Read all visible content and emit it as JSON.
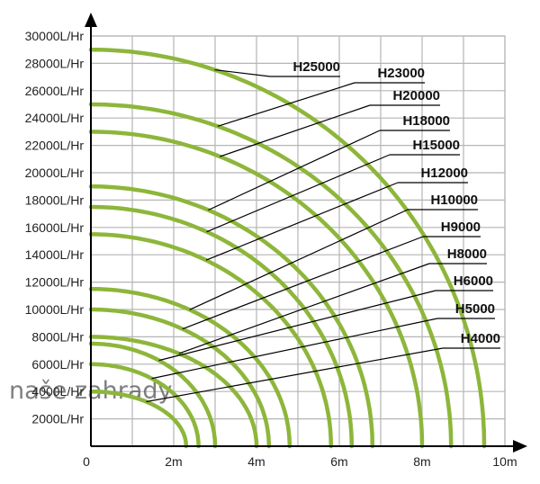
{
  "chart_data": {
    "type": "line",
    "title": "",
    "xlabel": "",
    "ylabel": "",
    "x_unit": "m",
    "y_unit": "L/Hr",
    "xlim": [
      0,
      10
    ],
    "ylim": [
      0,
      30000
    ],
    "x_ticks": [
      "0",
      "2m",
      "4m",
      "6m",
      "8m",
      "10m"
    ],
    "y_ticks": [
      "2000L/Hr",
      "4000L/Hr",
      "6000L/Hr",
      "8000L/Hr",
      "10000L/Hr",
      "12000L/Hr",
      "14000L/Hr",
      "16000L/Hr",
      "18000L/Hr",
      "20000L/Hr",
      "22000L/Hr",
      "24000L/Hr",
      "26000L/Hr",
      "28000L/Hr",
      "30000L/Hr"
    ],
    "grid": true,
    "line_color": "#8db63a",
    "series": [
      {
        "name": "H25000",
        "max_head_m": 9.5,
        "max_flow": 29000
      },
      {
        "name": "H23000",
        "max_head_m": 8.7,
        "max_flow": 25000
      },
      {
        "name": "H20000",
        "max_head_m": 8.0,
        "max_flow": 23000
      },
      {
        "name": "H18000",
        "max_head_m": 6.8,
        "max_flow": 19000
      },
      {
        "name": "H15000",
        "max_head_m": 6.3,
        "max_flow": 17500
      },
      {
        "name": "H12000",
        "max_head_m": 5.8,
        "max_flow": 15500
      },
      {
        "name": "H10000",
        "max_head_m": 4.8,
        "max_flow": 11500
      },
      {
        "name": "H9000",
        "max_head_m": 4.3,
        "max_flow": 10000
      },
      {
        "name": "H8000",
        "max_head_m": 4.0,
        "max_flow": 8000
      },
      {
        "name": "H6000",
        "max_head_m": 3.0,
        "max_flow": 7500
      },
      {
        "name": "H5000",
        "max_head_m": 2.6,
        "max_flow": 6000
      },
      {
        "name": "H4000",
        "max_head_m": 2.3,
        "max_flow": 4000
      }
    ]
  },
  "watermark": {
    "brand": "naše zahrady"
  }
}
